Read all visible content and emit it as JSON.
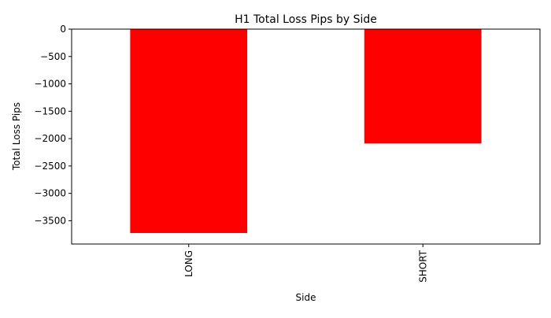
{
  "chart_data": {
    "type": "bar",
    "title": "H1 Total Loss Pips by Side",
    "xlabel": "Side",
    "ylabel": "Total Loss Pips",
    "categories": [
      "LONG",
      "SHORT"
    ],
    "values": [
      -3725,
      -2090
    ],
    "ylim": [
      -3925,
      0
    ],
    "yticks": [
      0,
      -500,
      -1000,
      -1500,
      -2000,
      -2500,
      -3000,
      -3500
    ],
    "ytick_labels": [
      "0",
      "−500",
      "−1000",
      "−1500",
      "−2000",
      "−2500",
      "−3000",
      "−3500"
    ],
    "bar_color": "#ff0000",
    "grid": false,
    "legend": "none"
  }
}
